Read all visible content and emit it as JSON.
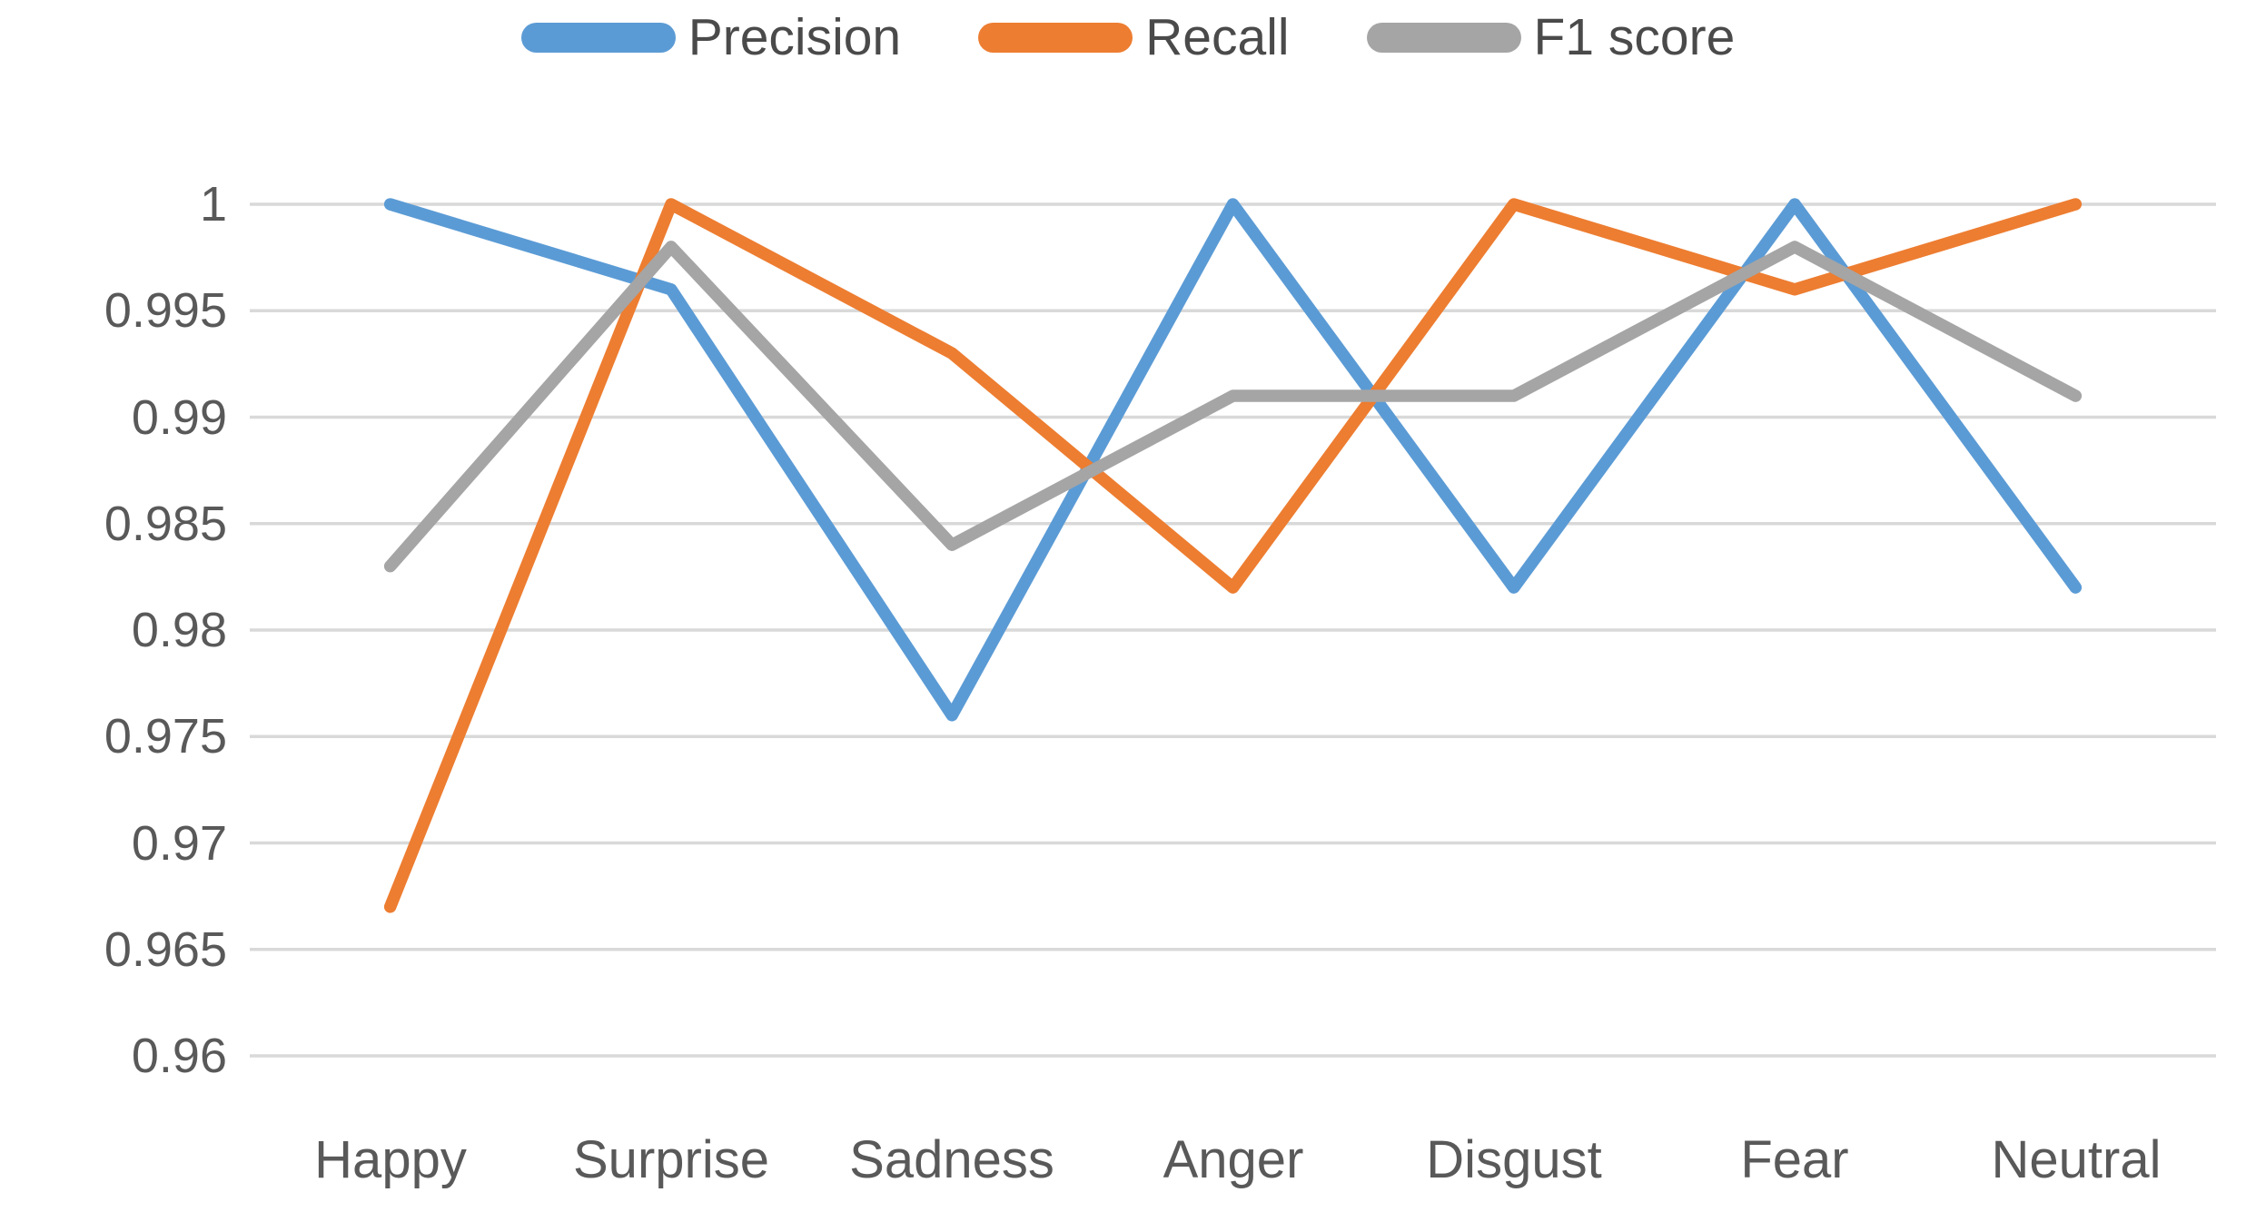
{
  "chart_data": {
    "type": "line",
    "title": "",
    "xlabel": "",
    "ylabel": "",
    "categories": [
      "Happy",
      "Surprise",
      "Sadness",
      "Anger",
      "Disgust",
      "Fear",
      "Neutral"
    ],
    "series": [
      {
        "name": "Precision",
        "color": "#5B9BD5",
        "values": [
          1.0,
          0.996,
          0.976,
          1.0,
          0.982,
          1.0,
          0.982
        ]
      },
      {
        "name": "Recall",
        "color": "#ED7D31",
        "values": [
          0.967,
          1.0,
          0.993,
          0.982,
          1.0,
          0.996,
          1.0
        ]
      },
      {
        "name": "F1 score",
        "color": "#A5A5A5",
        "values": [
          0.983,
          0.998,
          0.984,
          0.991,
          0.991,
          0.998,
          0.991
        ]
      }
    ],
    "ylim": [
      0.96,
      1.0
    ],
    "y_ticks": [
      1,
      0.995,
      0.99,
      0.985,
      0.98,
      0.975,
      0.97,
      0.965,
      0.96
    ],
    "y_tick_labels": [
      "1",
      "0.995",
      "0.99",
      "0.985",
      "0.98",
      "0.975",
      "0.97",
      "0.965",
      "0.96"
    ],
    "grid": "horizontal",
    "legend_position": "top",
    "colors": {
      "gridline": "#D9D9D9",
      "axis_text": "#595959",
      "legend_text": "#4a4a4a"
    }
  }
}
